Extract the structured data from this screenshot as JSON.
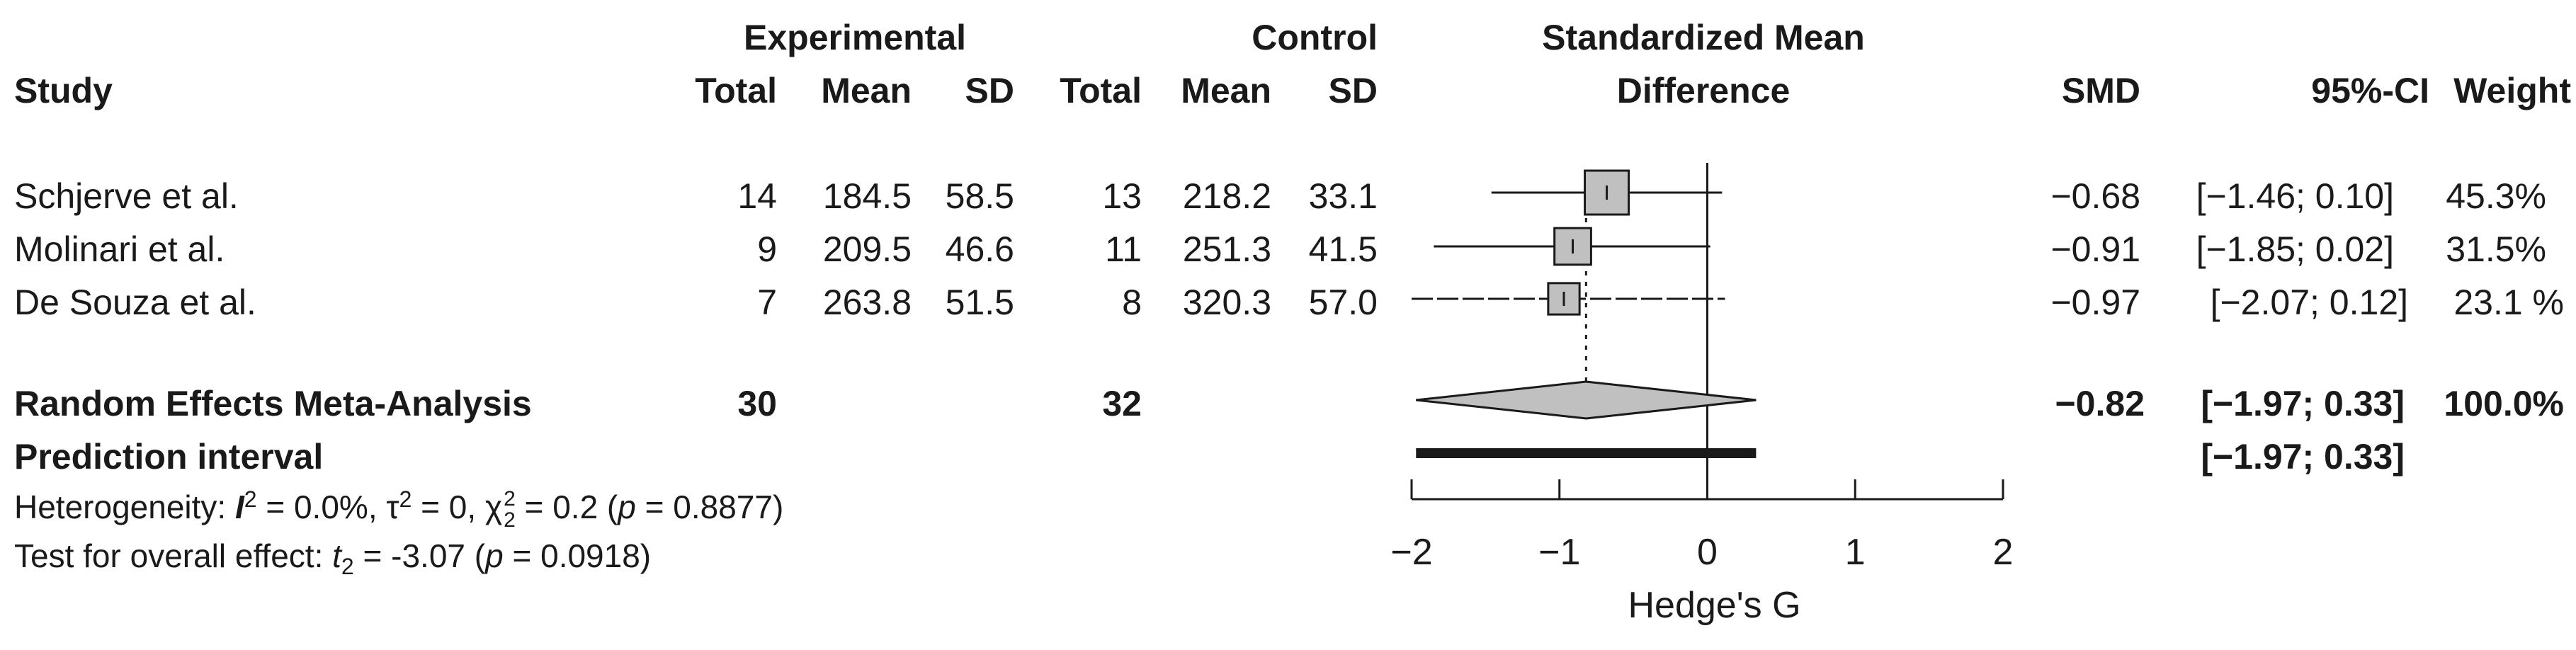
{
  "header": {
    "experimental": "Experimental",
    "control": "Control",
    "smd_group_line1": "Standardized Mean",
    "smd_group_line2": "Difference",
    "study": "Study",
    "total": "Total",
    "mean": "Mean",
    "sd": "SD",
    "smd": "SMD",
    "ci": "95%-CI",
    "weight": "Weight"
  },
  "studies": [
    {
      "name": "Schjerve et al.",
      "exp_total": "14",
      "exp_mean": "184.5",
      "exp_sd": "58.5",
      "ctl_total": "13",
      "ctl_mean": "218.2",
      "ctl_sd": "33.1",
      "smd": "−0.68",
      "ci": "[−1.46; 0.10]",
      "weight": "45.3%"
    },
    {
      "name": "Molinari et al.",
      "exp_total": "9",
      "exp_mean": "209.5",
      "exp_sd": "46.6",
      "ctl_total": "11",
      "ctl_mean": "251.3",
      "ctl_sd": "41.5",
      "smd": "−0.91",
      "ci": "[−1.85; 0.02]",
      "weight": "31.5%"
    },
    {
      "name": "De Souza et al.",
      "exp_total": "7",
      "exp_mean": "263.8",
      "exp_sd": "51.5",
      "ctl_total": "8",
      "ctl_mean": "320.3",
      "ctl_sd": "57.0",
      "smd": "−0.97",
      "ci": "[−2.07; 0.12]",
      "weight": "23.1 %"
    }
  ],
  "pooled": {
    "label": "Random Effects Meta-Analysis",
    "exp_total": "30",
    "ctl_total": "32",
    "smd": "−0.82",
    "ci": "[−1.97; 0.33]",
    "weight": "100.0%"
  },
  "prediction": {
    "label": "Prediction interval",
    "ci": "[−1.97; 0.33]"
  },
  "heterogeneity": {
    "prefix": "Heterogeneity: ",
    "i_symbol": "I",
    "i_sup": "2",
    "i_value": " = 0.0%, ",
    "tau_symbol": "τ",
    "tau_sup": "2",
    "tau_value": " = 0, ",
    "chi_symbol": "χ",
    "chi_sup": "2",
    "chi_sub": "2",
    "chi_value": " = 0.2 (",
    "p_symbol": "p",
    "p_value": " = 0.8877)"
  },
  "overall": {
    "prefix": "Test for overall effect: ",
    "t_symbol": "t",
    "t_sub": "2",
    "t_value": " = -3.07 (",
    "p_symbol": "p",
    "p_value": " = 0.0918)"
  },
  "chart_data": {
    "type": "forest",
    "xlabel": "Hedge's G",
    "xlim": [
      -2,
      2
    ],
    "ticks": [
      -2,
      -1,
      0,
      1,
      2
    ],
    "tick_labels": [
      "−2",
      "−1",
      "0",
      "1",
      "2"
    ],
    "reference_line": 0,
    "studies": [
      {
        "name": "Schjerve et al.",
        "smd": -0.68,
        "lower": -1.46,
        "upper": 0.1,
        "weight": 45.3
      },
      {
        "name": "Molinari et al.",
        "smd": -0.91,
        "lower": -1.85,
        "upper": 0.02,
        "weight": 31.5
      },
      {
        "name": "De Souza et al.",
        "smd": -0.97,
        "lower": -2.07,
        "upper": 0.12,
        "weight": 23.1
      }
    ],
    "pooled": {
      "smd": -0.82,
      "lower": -1.97,
      "upper": 0.33
    },
    "prediction_interval": {
      "lower": -1.97,
      "upper": 0.33
    },
    "colors": {
      "box": "#c0c0c0",
      "diamond": "#c0c0c0",
      "line": "#1a1a1a"
    }
  }
}
